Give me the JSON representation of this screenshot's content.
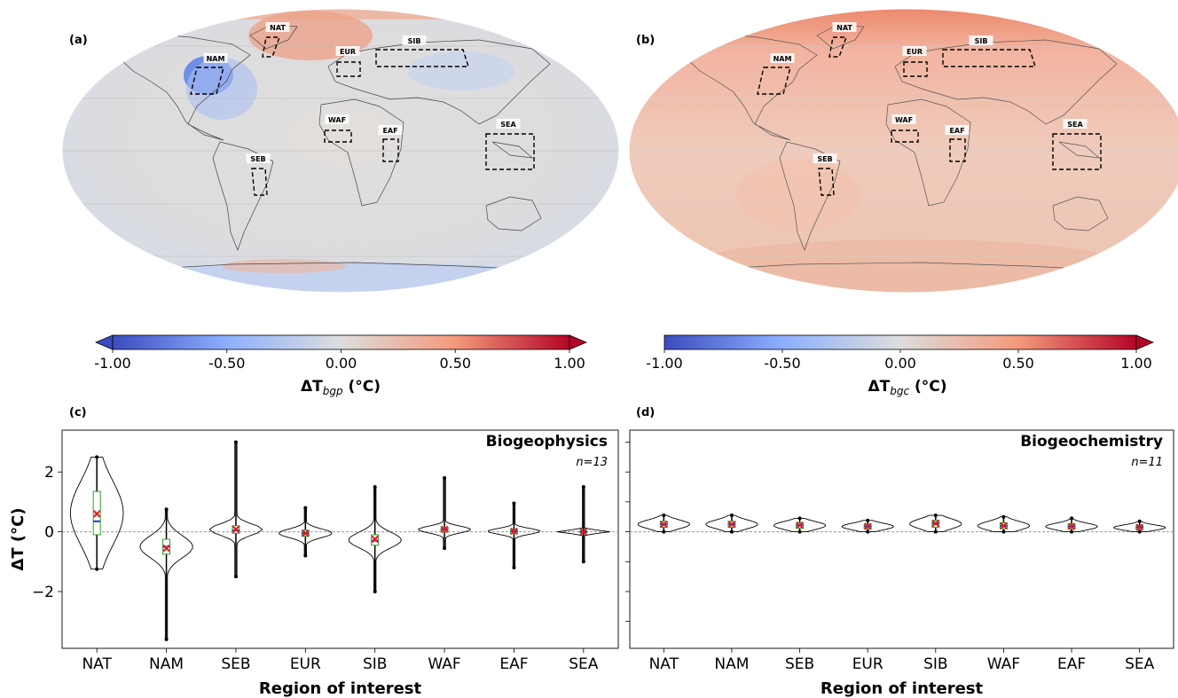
{
  "panels": {
    "a": {
      "label": "(a)",
      "region_labels": [
        "NAT",
        "NAM",
        "EUR",
        "SIB",
        "WAF",
        "EAF",
        "SEA",
        "SEB"
      ],
      "colorbar": {
        "ticks": [
          "-1.00",
          "-0.50",
          "0.00",
          "0.50",
          "1.00"
        ],
        "label_main": "ΔT",
        "label_sub": "bgp",
        "label_unit": " (°C)",
        "extend": "both"
      }
    },
    "b": {
      "label": "(b)",
      "region_labels": [
        "NAT",
        "NAM",
        "EUR",
        "SIB",
        "WAF",
        "EAF",
        "SEA",
        "SEB"
      ],
      "colorbar": {
        "ticks": [
          "-1.00",
          "-0.50",
          "0.00",
          "0.50",
          "1.00"
        ],
        "label_main": "ΔT",
        "label_sub": "bgc",
        "label_unit": " (°C)",
        "extend": "max"
      }
    },
    "c": {
      "label": "(c)"
    },
    "d": {
      "label": "(d)"
    }
  },
  "colors": {
    "cold": "#3b4cc0",
    "neutral": "#dddddd",
    "warm": "#b40426",
    "box_edge": "#2ca02c",
    "median": "#1f3fbf",
    "mean_marker": "#e41a1c",
    "zero_line": "#999999"
  },
  "chart_data": [
    {
      "type": "violin",
      "panel": "c",
      "title": "Biogeophysics",
      "annotation": "n=13",
      "xlabel": "Region of interest",
      "ylabel": "ΔT (°C)",
      "ylim": [
        -3.9,
        3.4
      ],
      "yticks": [
        -2,
        0,
        2
      ],
      "categories": [
        "NAT",
        "NAM",
        "SEB",
        "EUR",
        "SIB",
        "WAF",
        "EAF",
        "SEA"
      ],
      "mean": [
        0.6,
        -0.55,
        0.08,
        -0.05,
        -0.25,
        0.08,
        0.02,
        0.0
      ],
      "median": [
        0.35,
        -0.5,
        0.05,
        -0.05,
        -0.3,
        0.08,
        0.02,
        0.0
      ],
      "q1": [
        -0.1,
        -0.75,
        -0.05,
        -0.15,
        -0.45,
        0.0,
        -0.05,
        -0.03
      ],
      "q3": [
        1.35,
        -0.25,
        0.2,
        0.05,
        -0.1,
        0.15,
        0.08,
        0.03
      ],
      "min": [
        -1.25,
        -3.6,
        -1.5,
        -0.8,
        -2.0,
        -0.55,
        -1.2,
        -1.0
      ],
      "max": [
        2.5,
        0.75,
        3.0,
        0.8,
        1.5,
        1.8,
        0.95,
        1.5
      ]
    },
    {
      "type": "violin",
      "panel": "d",
      "title": "Biogeochemistry",
      "annotation": "n=11",
      "xlabel": "Region of interest",
      "ylabel": "",
      "ylim": [
        -3.9,
        3.4
      ],
      "categories": [
        "NAT",
        "NAM",
        "SEB",
        "EUR",
        "SIB",
        "WAF",
        "EAF",
        "SEA"
      ],
      "mean": [
        0.25,
        0.25,
        0.22,
        0.18,
        0.28,
        0.2,
        0.18,
        0.15
      ],
      "median": [
        0.25,
        0.25,
        0.22,
        0.18,
        0.28,
        0.2,
        0.18,
        0.15
      ],
      "q1": [
        0.15,
        0.15,
        0.12,
        0.1,
        0.15,
        0.1,
        0.1,
        0.08
      ],
      "q3": [
        0.35,
        0.35,
        0.3,
        0.25,
        0.38,
        0.3,
        0.25,
        0.2
      ],
      "min": [
        0.0,
        0.0,
        0.0,
        0.0,
        0.0,
        0.0,
        0.0,
        0.0
      ],
      "max": [
        0.55,
        0.55,
        0.45,
        0.38,
        0.55,
        0.5,
        0.45,
        0.35
      ]
    }
  ]
}
